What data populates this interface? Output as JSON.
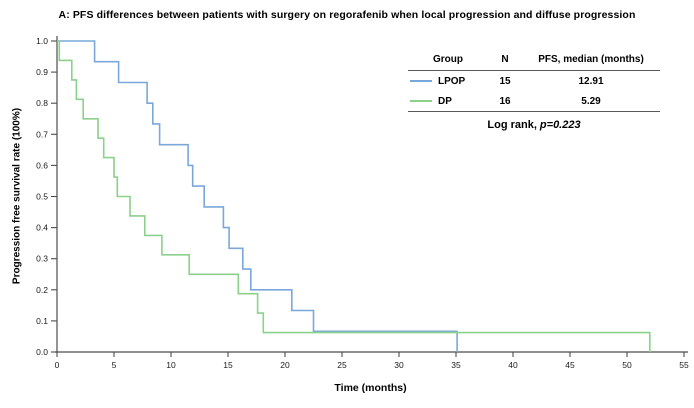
{
  "figure_title": "A: PFS differences between patients with surgery on regorafenib when local progression and diffuse progression",
  "inset_table": {
    "columns": [
      "Group",
      "N",
      "PFS, median (months)"
    ],
    "rows": [
      {
        "group": "LPOP",
        "n": "15",
        "median": "12.91",
        "color": "#7aa8da"
      },
      {
        "group": "DP",
        "n": "16",
        "median": "5.29",
        "color": "#8bd18b"
      }
    ],
    "footer": {
      "prefix": "Log rank,",
      "stat": "p=0.223"
    }
  },
  "chart_data": {
    "type": "line",
    "subtype": "kaplan_meier_step",
    "title": "A: PFS differences between patients with surgery on regorafenib when local progression and diffuse progression",
    "xlabel": "Time (months)",
    "ylabel": "Progression free survival rate (100%)",
    "xlim": [
      0,
      55
    ],
    "ylim": [
      0,
      1.0
    ],
    "xticks": [
      0,
      5,
      10,
      15,
      20,
      25,
      30,
      35,
      40,
      45,
      50,
      55
    ],
    "ytick_labels": [
      "0.0",
      "0.1",
      "0.2",
      "0.3",
      "0.4",
      "0.5",
      "0.6",
      "0.7",
      "0.8",
      "0.9",
      "1.0"
    ],
    "grid": false,
    "legend_position": "inset-table-top-right",
    "axis_color": "#4d4d4d",
    "tick_label_color": "#1a1a1a",
    "series": [
      {
        "name": "LPOP",
        "color": "#7aa8da",
        "n": 15,
        "median_months": 12.91,
        "steps": [
          [
            0,
            1.0
          ],
          [
            3.3,
            0.9333
          ],
          [
            5.4,
            0.8667
          ],
          [
            7.9,
            0.8
          ],
          [
            8.4,
            0.7333
          ],
          [
            9.0,
            0.6667
          ],
          [
            11.5,
            0.6
          ],
          [
            11.9,
            0.5333
          ],
          [
            12.91,
            0.4667
          ],
          [
            14.6,
            0.4
          ],
          [
            15.1,
            0.3333
          ],
          [
            16.3,
            0.2667
          ],
          [
            17.0,
            0.2
          ],
          [
            20.6,
            0.1333
          ],
          [
            22.5,
            0.0667
          ],
          [
            35.1,
            0.0
          ]
        ]
      },
      {
        "name": "DP",
        "color": "#8bd18b",
        "n": 16,
        "median_months": 5.29,
        "steps": [
          [
            0,
            1.0
          ],
          [
            0.2,
            0.9375
          ],
          [
            1.3,
            0.875
          ],
          [
            1.7,
            0.8125
          ],
          [
            2.3,
            0.75
          ],
          [
            3.6,
            0.6875
          ],
          [
            4.1,
            0.625
          ],
          [
            5.0,
            0.5625
          ],
          [
            5.29,
            0.5
          ],
          [
            6.4,
            0.4375
          ],
          [
            7.7,
            0.375
          ],
          [
            9.2,
            0.3125
          ],
          [
            11.6,
            0.25
          ],
          [
            15.9,
            0.1875
          ],
          [
            17.6,
            0.125
          ],
          [
            18.1,
            0.0625
          ],
          [
            52.0,
            0.0
          ]
        ]
      }
    ]
  }
}
